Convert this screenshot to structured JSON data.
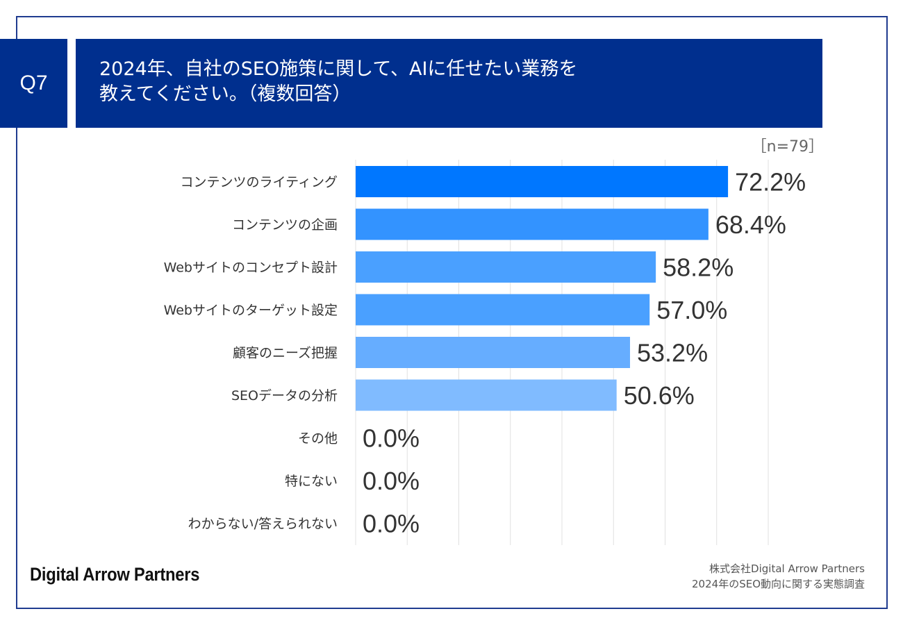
{
  "header": {
    "question_no": "Q7",
    "title_line1": "2024年、自社のSEO施策に関して、AIに任せたい業務を",
    "title_line2": "教えてください。（複数回答）",
    "sample": "［n=79］"
  },
  "footer": {
    "logo": "Digital Arrow Partners",
    "source_line1": "株式会社Digital Arrow Partners",
    "source_line2": "2024年のSEO動向に関する実態調査"
  },
  "colors": {
    "header_bg": "#002f8e",
    "bars": [
      "#0077ff",
      "#3393ff",
      "#4aa0ff",
      "#4aa0ff",
      "#66adff",
      "#80bbff",
      "#80bbff",
      "#80bbff",
      "#80bbff"
    ],
    "grid": "#e0e0e0"
  },
  "chart_data": {
    "type": "bar",
    "orientation": "horizontal",
    "categories": [
      "コンテンツのライティング",
      "コンテンツの企画",
      "Webサイトのコンセプト設計",
      "Webサイトのターゲット設定",
      "顧客のニーズ把握",
      "SEOデータの分析",
      "その他",
      "特にない",
      "わからない/答えられない"
    ],
    "values": [
      72.2,
      68.4,
      58.2,
      57.0,
      53.2,
      50.6,
      0.0,
      0.0,
      0.0
    ],
    "value_labels": [
      "72.2%",
      "68.4%",
      "58.2%",
      "57.0%",
      "53.2%",
      "50.6%",
      "0.0%",
      "0.0%",
      "0.0%"
    ],
    "xlim": [
      0,
      80
    ],
    "grid": true,
    "grid_step": 10
  }
}
